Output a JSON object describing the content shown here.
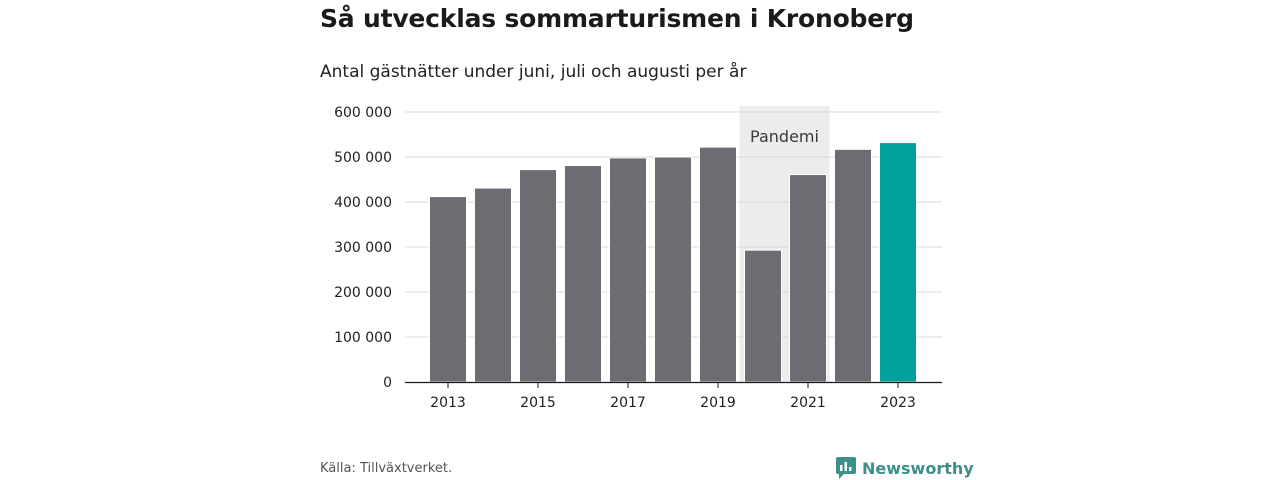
{
  "header": {
    "title": "Så utvecklas sommarturismen i Kronoberg",
    "subtitle": "Antal gästnätter under juni, juli och augusti per år"
  },
  "footer": {
    "source": "Källa: Tillväxtverket.",
    "brand": "Newsworthy",
    "brand_icon": "bar-chart-speech-icon"
  },
  "colors": {
    "bar": "#6d6c72",
    "highlight": "#00a19a",
    "band": "#ececec",
    "grid": "#d9d9d9",
    "axis": "#1a1a1a",
    "brand": "#3d8f8a"
  },
  "chart_data": {
    "type": "bar",
    "categories": [
      "2013",
      "2014",
      "2015",
      "2016",
      "2017",
      "2018",
      "2019",
      "2020",
      "2021",
      "2022",
      "2023"
    ],
    "values": [
      412000,
      431000,
      472000,
      481000,
      498000,
      500000,
      522000,
      293000,
      461000,
      517000,
      532000
    ],
    "highlight_category": "2023",
    "shaded_band": {
      "from": "2020",
      "to": "2021",
      "label": "Pandemi"
    },
    "x_tick_labels": [
      "2013",
      "2015",
      "2017",
      "2019",
      "2021",
      "2023"
    ],
    "y_ticks": [
      0,
      100000,
      200000,
      300000,
      400000,
      500000,
      600000
    ],
    "y_tick_labels": [
      "0",
      "100 000",
      "200 000",
      "300 000",
      "400 000",
      "500 000",
      "600 000"
    ],
    "ylim": [
      0,
      600000
    ],
    "grid": true,
    "legend": "none"
  }
}
